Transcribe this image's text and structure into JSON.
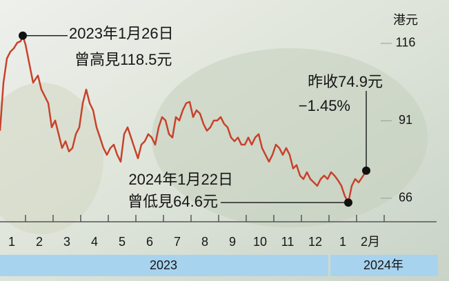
{
  "chart_data": {
    "type": "line",
    "unit_label": "港元",
    "color": "#c8412a",
    "x": [
      0.075,
      0.2,
      0.325,
      0.45,
      0.575,
      0.7,
      0.825,
      0.9,
      1.0,
      1.125,
      1.275,
      1.45,
      1.575,
      1.7,
      1.825,
      1.95,
      2.075,
      2.2,
      2.325,
      2.45,
      2.575,
      2.7,
      2.825,
      2.95,
      3.075,
      3.2,
      3.325,
      3.45,
      3.575,
      3.7,
      3.825,
      3.95,
      4.075,
      4.2,
      4.325,
      4.45,
      4.575,
      4.7,
      4.825,
      4.95,
      5.075,
      5.2,
      5.325,
      5.45,
      5.575,
      5.7,
      5.825,
      5.95,
      6.075,
      6.2,
      6.325,
      6.45,
      6.575,
      6.7,
      6.825,
      6.95,
      7.075,
      7.2,
      7.325,
      7.45,
      7.575,
      7.7,
      7.825,
      7.95,
      8.075,
      8.2,
      8.325,
      8.45,
      8.575,
      8.7,
      8.825,
      8.95,
      9.075,
      9.2,
      9.325,
      9.45,
      9.575,
      9.7,
      9.825,
      9.95,
      10.075,
      10.2,
      10.325,
      10.45,
      10.575,
      10.7,
      10.825,
      10.95,
      11.075,
      11.2,
      11.325,
      11.45,
      11.575,
      11.7,
      11.825,
      11.95,
      12.075,
      12.2,
      12.325,
      12.45,
      12.575,
      12.7,
      12.825,
      12.95,
      13.075,
      13.2,
      13.35
    ],
    "values": [
      87.8,
      103.3,
      111.1,
      113.3,
      114.4,
      116.2,
      116.7,
      118.5,
      115.6,
      110.0,
      103.3,
      105.6,
      101.1,
      98.9,
      96.7,
      88.9,
      91.1,
      86.7,
      82.2,
      84.4,
      81.1,
      82.2,
      86.7,
      88.9,
      96.7,
      101.1,
      96.7,
      94.4,
      88.9,
      85.6,
      82.2,
      80.0,
      82.2,
      83.3,
      80.0,
      77.8,
      86.7,
      88.9,
      85.6,
      82.2,
      78.9,
      83.3,
      84.4,
      86.7,
      85.6,
      83.3,
      88.9,
      92.2,
      91.1,
      86.7,
      85.6,
      92.2,
      91.1,
      94.4,
      96.7,
      97.1,
      92.2,
      94.4,
      93.3,
      90.0,
      87.8,
      88.9,
      91.1,
      91.1,
      92.2,
      90.0,
      88.9,
      85.6,
      84.4,
      85.6,
      83.3,
      83.3,
      85.6,
      83.3,
      85.6,
      86.7,
      82.2,
      80.0,
      77.8,
      80.0,
      83.3,
      82.2,
      80.0,
      82.2,
      80.0,
      75.6,
      76.7,
      73.3,
      72.2,
      74.4,
      72.2,
      71.1,
      70.0,
      72.2,
      73.3,
      72.2,
      74.4,
      73.3,
      71.8,
      70.0,
      66.7,
      64.6,
      70.0,
      72.2,
      71.1,
      72.7,
      74.9
    ],
    "xlim": [
      0,
      15.9
    ],
    "ylim": [
      58.4,
      130
    ],
    "yticks": [
      66,
      91,
      116
    ],
    "xticks": [
      {
        "value": 0.5,
        "label": "1"
      },
      {
        "value": 1.5,
        "label": "2"
      },
      {
        "value": 2.5,
        "label": "3"
      },
      {
        "value": 3.5,
        "label": "4"
      },
      {
        "value": 4.5,
        "label": "5"
      },
      {
        "value": 5.5,
        "label": "6"
      },
      {
        "value": 6.5,
        "label": "7"
      },
      {
        "value": 7.5,
        "label": "8"
      },
      {
        "value": 8.5,
        "label": "9"
      },
      {
        "value": 9.5,
        "label": "10"
      },
      {
        "value": 10.5,
        "label": "11"
      },
      {
        "value": 11.5,
        "label": "12"
      },
      {
        "value": 12.5,
        "label": "1"
      },
      {
        "value": 13.5,
        "label": "2月"
      }
    ],
    "xtick_marks": [
      1,
      2,
      3,
      4,
      5,
      6,
      7,
      8,
      9,
      10,
      11,
      12,
      13,
      14
    ],
    "years": [
      "2023",
      "2024年"
    ],
    "annotations": [
      [
        "2023年1月26日",
        "曾高見118.5元"
      ],
      [
        "昨收74.9元",
        "−1.45%"
      ],
      [
        "2024年1月22日",
        "曾低見64.6元"
      ]
    ]
  }
}
